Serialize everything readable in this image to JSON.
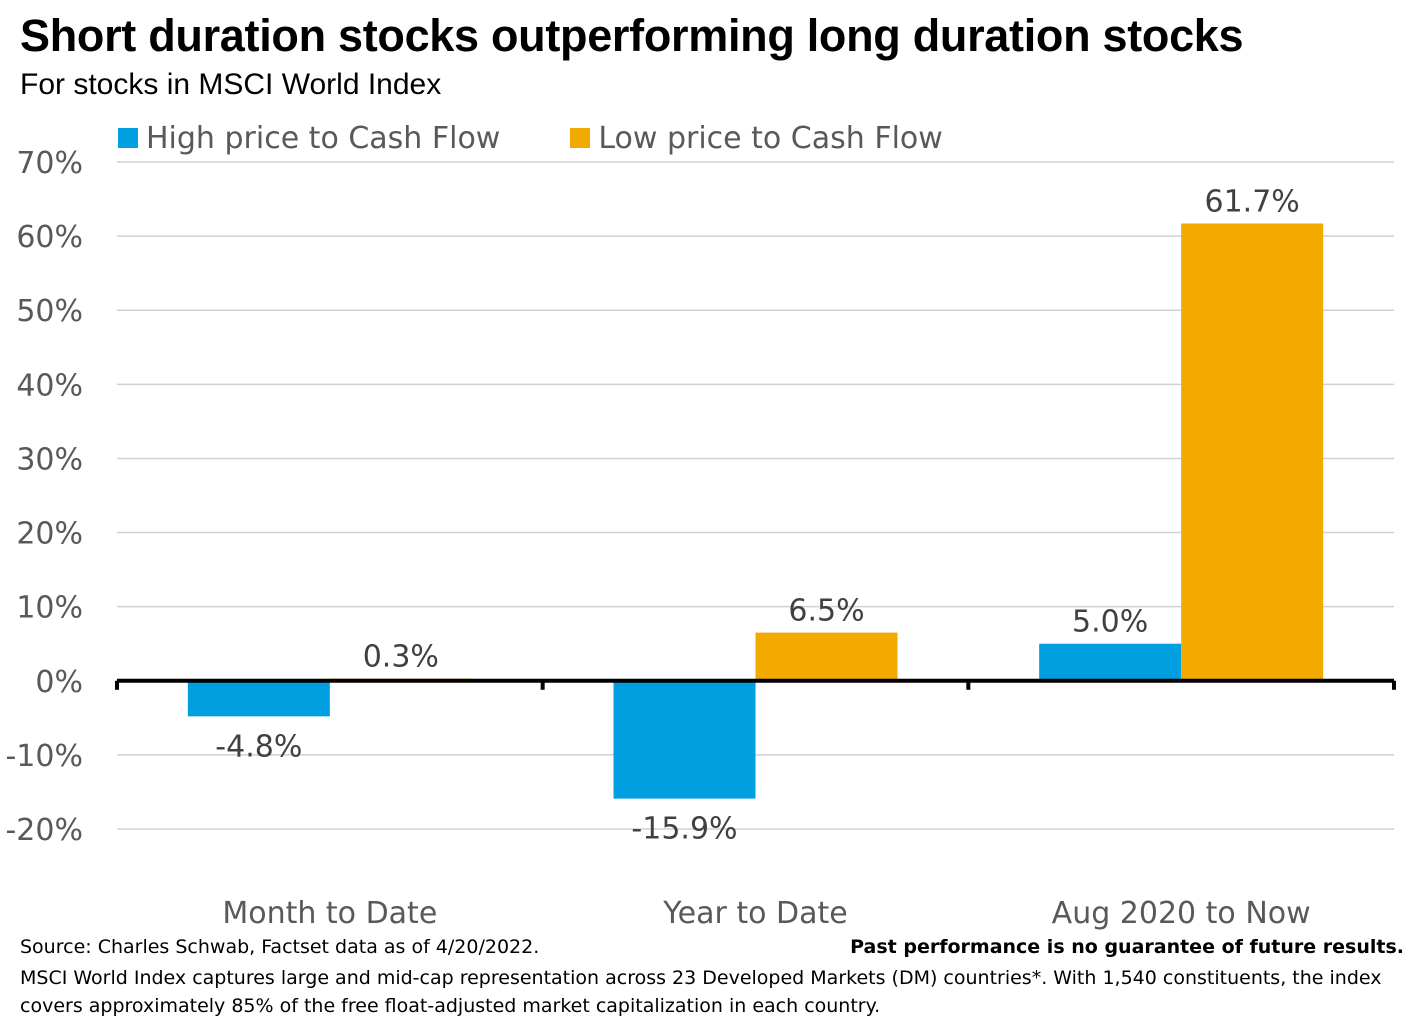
{
  "title": "Short duration stocks outperforming long duration stocks",
  "subtitle": "For stocks in MSCI World Index",
  "footer": {
    "source": "Source: Charles Schwab, Factset data as of 4/20/2022.",
    "disclaimer": "Past performance is no guarantee of future results.",
    "note": "MSCI World Index captures large and mid-cap representation across 23 Developed Markets (DM) countries*. With 1,540 constituents, the index covers approximately 85% of the free float-adjusted market capitalization in each country."
  },
  "chart_data": {
    "type": "bar",
    "categories": [
      "Month to Date",
      "Year to Date",
      "Aug 2020 to Now"
    ],
    "series": [
      {
        "name": "High price to Cash Flow",
        "color": "#009FDF",
        "values": [
          -4.8,
          -15.9,
          5.0
        ],
        "labels": [
          "-4.8%",
          "-15.9%",
          "5.0%"
        ]
      },
      {
        "name": "Low price to Cash Flow",
        "color": "#F2A900",
        "values": [
          0.3,
          6.5,
          61.7
        ],
        "labels": [
          "0.3%",
          "6.5%",
          "61.7%"
        ]
      }
    ],
    "ylim": [
      -20,
      70
    ],
    "yticks": [
      70,
      60,
      50,
      40,
      30,
      20,
      10,
      0,
      -10,
      -20
    ],
    "ytick_labels": [
      "70%",
      "60%",
      "50%",
      "40%",
      "30%",
      "20%",
      "10%",
      "0%",
      "-10%",
      "-20%"
    ],
    "grid": true,
    "legend_position": "top-left"
  }
}
